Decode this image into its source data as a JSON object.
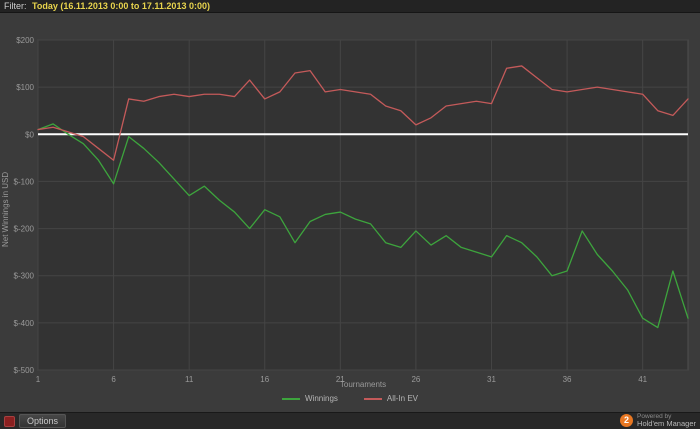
{
  "filter_bar": {
    "label": "Filter:",
    "value": "Today (16.11.2013 0:00 to 17.11.2013 0:00)"
  },
  "chart_data": {
    "type": "line",
    "title": "",
    "xlabel": "Tournaments",
    "ylabel": "Net Winnings in USD",
    "xlim": [
      1,
      44
    ],
    "ylim": [
      -500,
      200
    ],
    "x_ticks": [
      1,
      6,
      11,
      16,
      21,
      26,
      31,
      36,
      41
    ],
    "y_ticks": [
      "$200",
      "$100",
      "$0",
      "$-100",
      "$-200",
      "$-300",
      "$-400",
      "$-500"
    ],
    "grid": true,
    "zero_line": 0,
    "legend_position": "bottom",
    "series": [
      {
        "name": "Winnings",
        "color": "#3da43d",
        "values": [
          10,
          22,
          0,
          -20,
          -55,
          -105,
          -5,
          -30,
          -60,
          -95,
          -130,
          -110,
          -140,
          -165,
          -200,
          -160,
          -175,
          -230,
          -185,
          -170,
          -165,
          -180,
          -190,
          -230,
          -240,
          -205,
          -235,
          -215,
          -240,
          -250,
          -260,
          -215,
          -230,
          -260,
          -300,
          -290,
          -205,
          -255,
          -290,
          -330,
          -390,
          -410,
          -290,
          -390
        ]
      },
      {
        "name": "All-In EV",
        "color": "#c45a5a",
        "values": [
          10,
          15,
          5,
          -5,
          -30,
          -55,
          75,
          70,
          80,
          85,
          80,
          85,
          85,
          80,
          115,
          75,
          90,
          130,
          135,
          90,
          95,
          90,
          85,
          60,
          50,
          20,
          35,
          60,
          65,
          70,
          65,
          140,
          145,
          120,
          95,
          90,
          95,
          100,
          95,
          90,
          85,
          50,
          40,
          75
        ]
      }
    ]
  },
  "bottom_bar": {
    "options_label": "Options"
  },
  "branding": {
    "powered_by": "Powered by",
    "app_name": "Hold'em Manager",
    "logo_text": "2"
  },
  "colors": {
    "background": "#3b3b3b",
    "plot_bg": "#333333",
    "grid": "#454545",
    "tick_text": "#9a9a9a",
    "zero_line": "#ffffff",
    "winnings_green": "#3da43d",
    "ev_red": "#c45a5a",
    "filter_highlight": "#e8d44d",
    "logo_orange": "#e87722",
    "options_icon_red": "#8a2020"
  }
}
